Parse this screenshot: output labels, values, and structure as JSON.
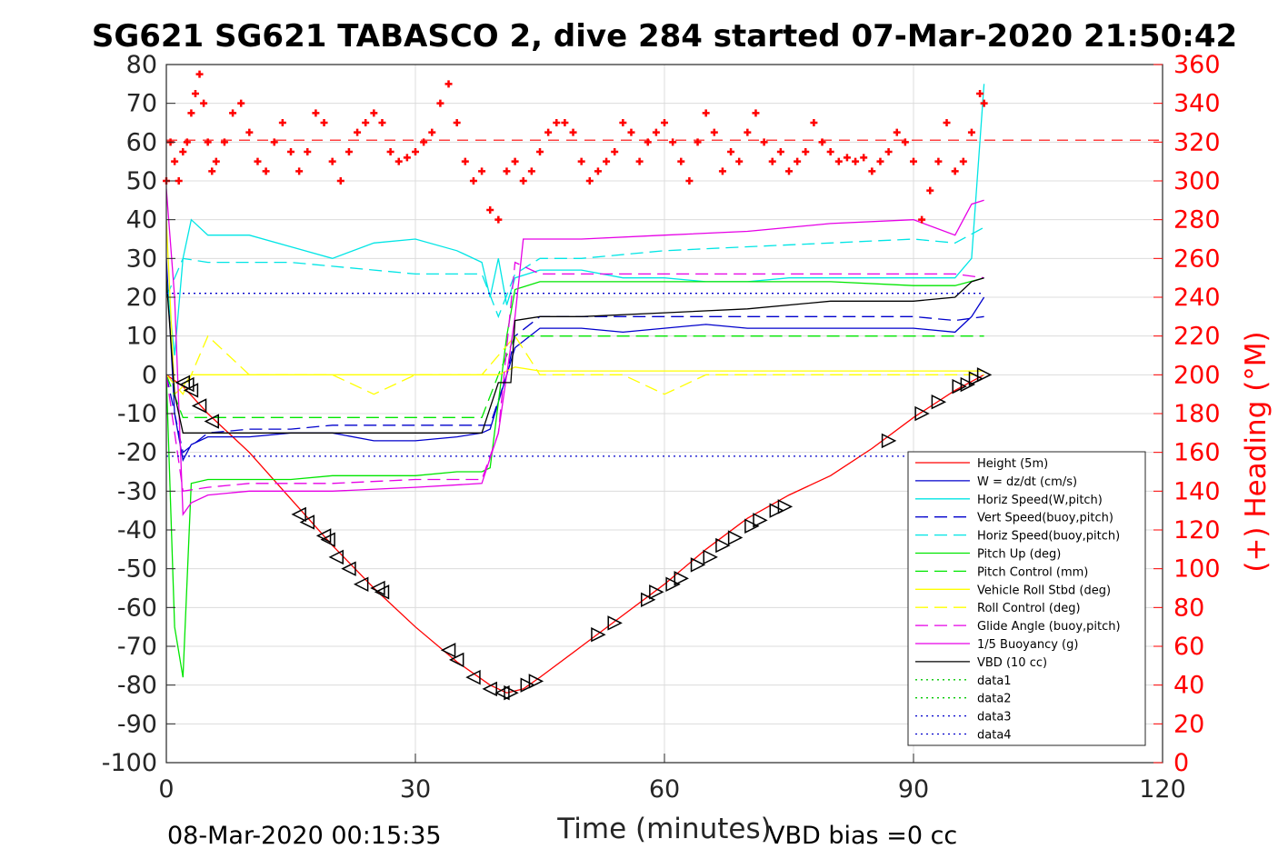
{
  "chart_data": {
    "type": "line",
    "title": "SG621 SG621 TABASCO 2, dive 284 started 07-Mar-2020 21:50:42",
    "xlabel": "Time (minutes)",
    "ylabel_right": "(+) Heading (°M)",
    "xlim": [
      0,
      120
    ],
    "ylim": [
      -100,
      80
    ],
    "ylim_right": [
      0,
      360
    ],
    "xticks": [
      "0",
      "30",
      "60",
      "90",
      "120"
    ],
    "yticks": [
      "80",
      "70",
      "60",
      "50",
      "40",
      "30",
      "20",
      "10",
      "0",
      "-10",
      "-20",
      "-30",
      "-40",
      "-50",
      "-60",
      "-70",
      "-80",
      "-90",
      "-100"
    ],
    "yticks_right": [
      "360",
      "340",
      "320",
      "300",
      "280",
      "260",
      "240",
      "220",
      "200",
      "180",
      "160",
      "140",
      "120",
      "100",
      "80",
      "60",
      "40",
      "20",
      "0"
    ],
    "grid": true,
    "legend_position": "bottom-right",
    "footer_left": "08-Mar-2020 00:15:35",
    "footer_right": "VBD bias =0 cc",
    "series": [
      {
        "name": "Height (5m)",
        "color": "#ff0000",
        "style": "solid",
        "x": [
          0,
          2,
          5,
          10,
          15,
          20,
          25,
          30,
          35,
          39,
          41,
          43,
          45,
          50,
          55,
          60,
          65,
          70,
          75,
          80,
          85,
          90,
          95,
          98.5
        ],
        "y": [
          0,
          -3,
          -10,
          -20,
          -32,
          -44,
          -55,
          -65,
          -74,
          -80,
          -82,
          -81,
          -78,
          -70,
          -62,
          -54,
          -45,
          -37,
          -31,
          -26,
          -19,
          -11,
          -4,
          0
        ]
      },
      {
        "name": "W = dz/dt (cm/s)",
        "color": "#0000cc",
        "style": "solid",
        "x": [
          0,
          1,
          2,
          3,
          5,
          10,
          15,
          20,
          25,
          30,
          35,
          38,
          39,
          41,
          42,
          45,
          50,
          55,
          60,
          65,
          70,
          75,
          80,
          85,
          90,
          95,
          97,
          98.5
        ],
        "y": [
          30,
          -10,
          -22,
          -18,
          -16,
          -16,
          -15,
          -15,
          -17,
          -17,
          -16,
          -15,
          -14,
          0,
          7,
          12,
          12,
          11,
          12,
          13,
          12,
          12,
          12,
          12,
          12,
          11,
          15,
          20
        ]
      },
      {
        "name": "Horiz Speed(W,pitch)",
        "color": "#00e5e5",
        "style": "solid",
        "x": [
          0,
          1,
          2,
          3,
          5,
          10,
          15,
          20,
          25,
          30,
          35,
          38,
          39,
          40,
          41,
          42,
          45,
          50,
          55,
          60,
          65,
          70,
          75,
          80,
          85,
          90,
          95,
          97,
          98.5
        ],
        "y": [
          25,
          5,
          30,
          40,
          36,
          36,
          33,
          30,
          34,
          35,
          32,
          29,
          20,
          30,
          18,
          25,
          27,
          27,
          25,
          25,
          24,
          24,
          25,
          25,
          25,
          25,
          25,
          30,
          75
        ]
      },
      {
        "name": "Vert Speed(buoy,pitch)",
        "color": "#0000cc",
        "style": "dash",
        "x": [
          0,
          2,
          5,
          10,
          15,
          20,
          25,
          30,
          35,
          38,
          39,
          41,
          42,
          45,
          50,
          60,
          70,
          80,
          90,
          95,
          98.5
        ],
        "y": [
          0,
          -20,
          -15,
          -14,
          -14,
          -13,
          -13,
          -13,
          -13,
          -13,
          -13,
          0,
          10,
          15,
          15,
          15,
          15,
          15,
          15,
          14,
          15
        ]
      },
      {
        "name": "Horiz Speed(buoy,pitch)",
        "color": "#00e5e5",
        "style": "dash",
        "x": [
          0,
          2,
          5,
          10,
          15,
          20,
          25,
          30,
          35,
          38,
          40,
          42,
          45,
          50,
          60,
          70,
          80,
          90,
          95,
          98.5
        ],
        "y": [
          20,
          30,
          29,
          29,
          29,
          28,
          27,
          26,
          26,
          26,
          15,
          26,
          30,
          30,
          32,
          33,
          34,
          35,
          34,
          38
        ]
      },
      {
        "name": "Pitch Up (deg)",
        "color": "#00e600",
        "style": "solid",
        "x": [
          0,
          1,
          2,
          3,
          5,
          10,
          15,
          20,
          25,
          30,
          35,
          38,
          39,
          41,
          42,
          45,
          50,
          60,
          70,
          80,
          90,
          95,
          98.5
        ],
        "y": [
          0,
          -65,
          -78,
          -28,
          -27,
          -27,
          -27,
          -26,
          -26,
          -26,
          -25,
          -25,
          -24,
          10,
          22,
          24,
          24,
          24,
          24,
          24,
          23,
          23,
          25
        ]
      },
      {
        "name": "Pitch Control (mm)",
        "color": "#00e600",
        "style": "dash",
        "x": [
          0,
          2,
          5,
          10,
          20,
          30,
          38,
          40,
          42,
          50,
          60,
          70,
          80,
          90,
          95,
          98.5
        ],
        "y": [
          0,
          -11,
          -11,
          -11,
          -11,
          -11,
          -11,
          0,
          10,
          10,
          10,
          10,
          10,
          10,
          10,
          10
        ]
      },
      {
        "name": "Vehicle Roll Stbd (deg)",
        "color": "#ffff00",
        "style": "solid",
        "x": [
          0,
          1,
          2,
          3,
          5,
          10,
          15,
          20,
          25,
          30,
          35,
          38,
          40,
          42,
          45,
          50,
          55,
          60,
          65,
          70,
          75,
          80,
          85,
          90,
          95,
          98.5
        ],
        "y": [
          40,
          -5,
          -3,
          0,
          0,
          0,
          0,
          0,
          0,
          0,
          0,
          0,
          0,
          2,
          1,
          1,
          1,
          1,
          1,
          1,
          1,
          1,
          1,
          1,
          1,
          1
        ]
      },
      {
        "name": "Roll Control (deg)",
        "color": "#ffff00",
        "style": "dash",
        "x": [
          0,
          2,
          5,
          10,
          15,
          20,
          25,
          30,
          35,
          38,
          40,
          42,
          45,
          50,
          55,
          60,
          65,
          70,
          75,
          80,
          85,
          90,
          95,
          98.5
        ],
        "y": [
          0,
          -5,
          10,
          0,
          0,
          0,
          -5,
          0,
          0,
          0,
          5,
          10,
          0,
          0,
          0,
          -5,
          0,
          0,
          0,
          0,
          0,
          0,
          0,
          0
        ]
      },
      {
        "name": "Glide Angle (buoy,pitch)",
        "color": "#e600e6",
        "style": "dash",
        "x": [
          0,
          2,
          5,
          10,
          20,
          30,
          38,
          40,
          42,
          45,
          50,
          60,
          70,
          80,
          90,
          95,
          98.5
        ],
        "y": [
          0,
          -30,
          -29,
          -28,
          -28,
          -27,
          -27,
          -15,
          29,
          26,
          26,
          26,
          26,
          26,
          26,
          26,
          25
        ]
      },
      {
        "name": "1/5 Buoyancy (g)",
        "color": "#e600e6",
        "style": "solid",
        "x": [
          0,
          1,
          2,
          3,
          5,
          10,
          20,
          30,
          38,
          40,
          42,
          43,
          45,
          50,
          60,
          70,
          80,
          90,
          95,
          97,
          98.5
        ],
        "y": [
          48,
          20,
          -36,
          -33,
          -31,
          -30,
          -30,
          -29,
          -28,
          -15,
          15,
          35,
          35,
          35,
          36,
          37,
          39,
          40,
          36,
          44,
          45
        ]
      },
      {
        "name": "VBD (10 cc)",
        "color": "#000000",
        "style": "solid",
        "x": [
          0,
          1,
          2,
          5,
          10,
          20,
          30,
          38,
          40,
          41.5,
          42,
          45,
          50,
          60,
          70,
          80,
          90,
          95,
          97,
          98.5
        ],
        "y": [
          25,
          -5,
          -15,
          -15,
          -15,
          -15,
          -15,
          -15,
          -2,
          -2,
          14,
          15,
          15,
          16,
          17,
          19,
          19,
          20,
          24,
          25
        ]
      },
      {
        "name": "data1",
        "color": "#00c800",
        "style": "dot",
        "x": [],
        "y": []
      },
      {
        "name": "data2",
        "color": "#00c800",
        "style": "dot",
        "x": [],
        "y": []
      },
      {
        "name": "data3",
        "color": "#0000cc",
        "style": "dot",
        "x": [
          0,
          98.5
        ],
        "y": [
          21,
          21
        ]
      },
      {
        "name": "data4",
        "color": "#0000cc",
        "style": "dot",
        "x": [
          0,
          98.5
        ],
        "y": [
          -21,
          -21
        ]
      }
    ],
    "heading": {
      "name": "Heading",
      "color": "#ff0000",
      "marker": "+",
      "mean": 321,
      "x": [
        0,
        0.5,
        1,
        1.5,
        2,
        2.5,
        3,
        3.5,
        4,
        4.5,
        5,
        5.5,
        6,
        7,
        8,
        9,
        10,
        11,
        12,
        13,
        14,
        15,
        16,
        17,
        18,
        19,
        20,
        21,
        22,
        23,
        24,
        25,
        26,
        27,
        28,
        29,
        30,
        31,
        32,
        33,
        34,
        35,
        36,
        37,
        38,
        39,
        40,
        41,
        42,
        43,
        44,
        45,
        46,
        47,
        48,
        49,
        50,
        51,
        52,
        53,
        54,
        55,
        56,
        57,
        58,
        59,
        60,
        61,
        62,
        63,
        64,
        65,
        66,
        67,
        68,
        69,
        70,
        71,
        72,
        73,
        74,
        75,
        76,
        77,
        78,
        79,
        80,
        81,
        82,
        83,
        84,
        85,
        86,
        87,
        88,
        89,
        90,
        91,
        92,
        93,
        94,
        95,
        96,
        97,
        98,
        98.5
      ],
      "y": [
        300,
        320,
        310,
        300,
        315,
        320,
        335,
        345,
        355,
        340,
        320,
        305,
        310,
        320,
        335,
        340,
        325,
        310,
        305,
        320,
        330,
        315,
        305,
        315,
        335,
        330,
        310,
        300,
        315,
        325,
        330,
        335,
        330,
        315,
        310,
        312,
        315,
        320,
        325,
        340,
        350,
        330,
        310,
        300,
        305,
        285,
        280,
        305,
        310,
        300,
        305,
        315,
        325,
        330,
        330,
        325,
        310,
        300,
        305,
        310,
        315,
        330,
        325,
        310,
        320,
        325,
        330,
        320,
        310,
        300,
        320,
        335,
        325,
        305,
        315,
        310,
        325,
        335,
        320,
        310,
        315,
        305,
        310,
        315,
        330,
        320,
        315,
        310,
        312,
        310,
        312,
        305,
        310,
        315,
        325,
        320,
        310,
        280,
        295,
        310,
        330,
        305,
        310,
        325,
        345,
        340
      ]
    },
    "height_markers": {
      "x": [
        2,
        2.5,
        3,
        4,
        5.5,
        16,
        17,
        19,
        19.5,
        20.5,
        22,
        23.5,
        25.5,
        26,
        34,
        35,
        37,
        39,
        40.5,
        41.5,
        43.5,
        44.5,
        52,
        54,
        58,
        59,
        61,
        62,
        64,
        65.5,
        67,
        68.5,
        70.5,
        71.5,
        73.5,
        74.5,
        87,
        91,
        93,
        95.5,
        96.5,
        97.5,
        98.5
      ],
      "y": [
        -2,
        -2.5,
        -4,
        -8,
        -12,
        -36,
        -38,
        -41.5,
        -42.5,
        -47,
        -50,
        -54,
        -55,
        -56,
        -71,
        -73.5,
        -78,
        -81,
        -82,
        -82,
        -80,
        -79,
        -67,
        -64,
        -58,
        -56,
        -54,
        -52.5,
        -49,
        -47,
        -44,
        -42,
        -39,
        -37.5,
        -35,
        -34,
        -17,
        -10,
        -7,
        -3,
        -2.5,
        -1,
        0
      ]
    }
  }
}
